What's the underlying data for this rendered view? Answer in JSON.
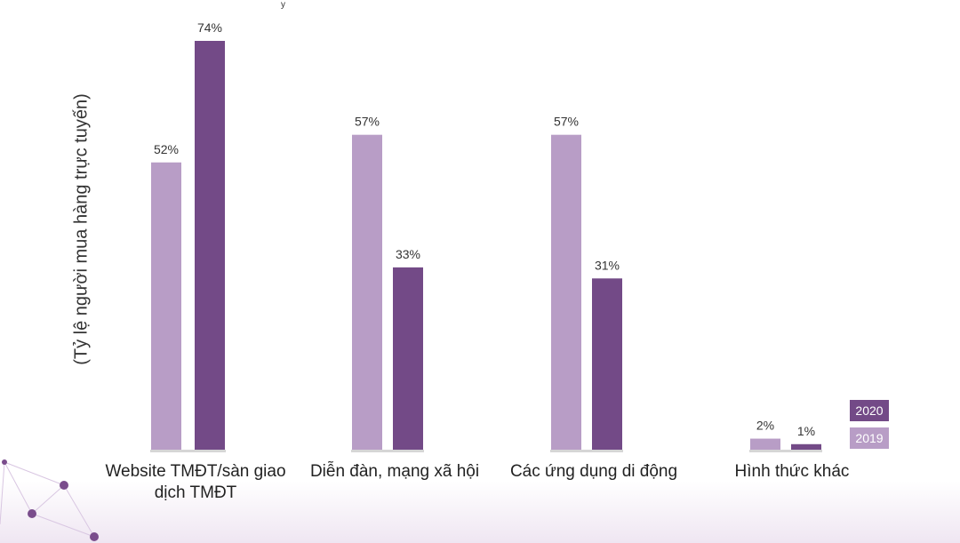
{
  "chart_data": {
    "type": "bar",
    "categories": [
      [
        "Website TMĐT/sàn giao",
        "dịch TMĐT"
      ],
      [
        "Diễn đàn, mạng xã hội"
      ],
      [
        "Các ứng dụng di động"
      ],
      [
        "Hình thức khác"
      ]
    ],
    "series": [
      {
        "name": "2019",
        "values": [
          52,
          57,
          57,
          2
        ],
        "labels": [
          "52%",
          "57%",
          "57%",
          "2%"
        ]
      },
      {
        "name": "2020",
        "values": [
          74,
          33,
          31,
          1
        ],
        "labels": [
          "74%",
          "33%",
          "31%",
          "1%"
        ]
      }
    ],
    "ylabel": "(Tỷ lệ người mua hàng trực tuyến)",
    "ylim": [
      0,
      80
    ],
    "grid": false,
    "legend_position": "bottom-right",
    "colors": {
      "2019": "#b89dc6",
      "2020": "#734a87",
      "baseline": "#d6d6d6"
    }
  },
  "decor": {
    "top_artifact": "y"
  }
}
